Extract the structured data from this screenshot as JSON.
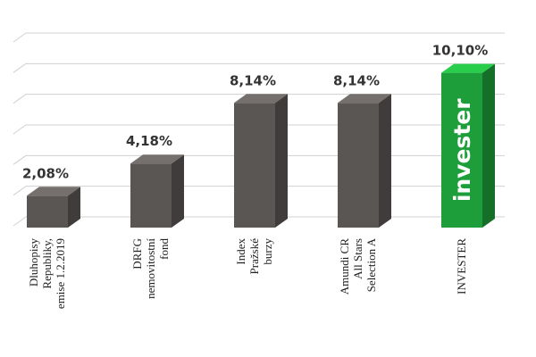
{
  "chart_data": {
    "type": "bar3d",
    "categories": [
      "Dluhopisy\nRepubliky,\nemise 1.2.2019",
      "DRFG\nnemovitostní\nfond",
      "Index\nPražské\nburzy",
      "Amundi CR\nAll Stars\nSelection A",
      "INVESTER"
    ],
    "values": [
      2.08,
      4.18,
      8.14,
      8.14,
      10.1
    ],
    "value_labels": [
      "2,08%",
      "4,18%",
      "8,14%",
      "8,14%",
      "10,10%"
    ],
    "colors": [
      "#5a5654",
      "#5a5654",
      "#5a5654",
      "#5a5654",
      "#1e9e3a"
    ],
    "ylim": [
      0,
      12
    ],
    "yticks": [
      0,
      2,
      4,
      6,
      8,
      10,
      12
    ],
    "grid": true,
    "annotations": [
      {
        "text": "invester",
        "category": "INVESTER"
      }
    ]
  }
}
